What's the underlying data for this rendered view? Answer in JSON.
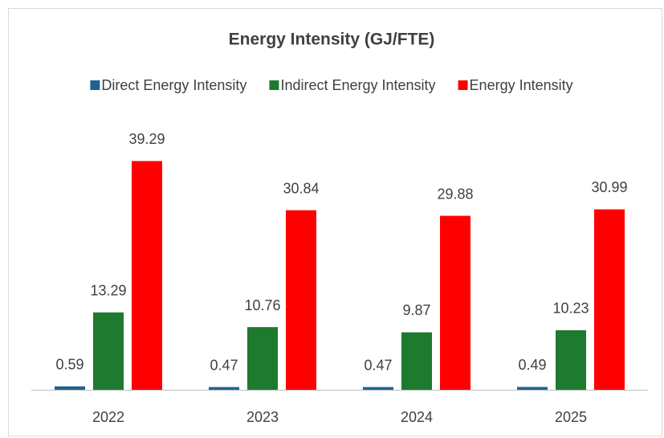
{
  "chart_data": {
    "type": "bar",
    "title": "Energy Intensity (GJ/FTE)",
    "categories": [
      "2022",
      "2023",
      "2024",
      "2025"
    ],
    "series": [
      {
        "name": "Direct Energy Intensity",
        "color": "#1f6391",
        "values": [
          0.59,
          0.47,
          0.47,
          0.49
        ]
      },
      {
        "name": "Indirect Energy Intensity",
        "color": "#1e7a2e",
        "values": [
          13.29,
          10.76,
          9.87,
          10.23
        ]
      },
      {
        "name": "Energy Intensity",
        "color": "#ff0000",
        "values": [
          39.29,
          30.84,
          29.88,
          30.99
        ]
      }
    ],
    "ylim": [
      0,
      45
    ],
    "legend": "top"
  }
}
